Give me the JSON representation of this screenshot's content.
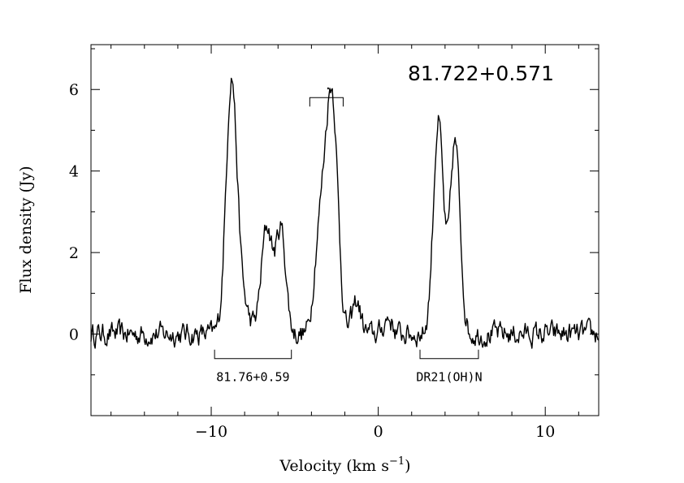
{
  "chart_data": {
    "type": "line",
    "title": "81.722+0.571",
    "xlabel": "Velocity (km s",
    "xlabel_sup": "−1",
    "xlabel_close": ")",
    "ylabel": "Flux density (Jy)",
    "xlim": [
      -17.2,
      13.2
    ],
    "ylim": [
      -2.0,
      7.1
    ],
    "xticks_major": [
      -10,
      0,
      10
    ],
    "xtick_labels": [
      "−10",
      "0",
      "10"
    ],
    "yticks_major": [
      0,
      2,
      4,
      6
    ],
    "ytick_labels": [
      "0",
      "2",
      "4",
      "6"
    ],
    "grid": false,
    "series": [
      {
        "color": "#000000",
        "peaks": [
          {
            "x": -8.8,
            "y": 5.85,
            "w": 0.32
          },
          {
            "x": -8.3,
            "y": 0.9,
            "w": 0.45
          },
          {
            "x": -6.7,
            "y": 2.25,
            "w": 0.32
          },
          {
            "x": -6.3,
            "y": 0.6,
            "w": 0.4
          },
          {
            "x": -5.8,
            "y": 2.3,
            "w": 0.28
          },
          {
            "x": -3.7,
            "y": 0.9,
            "w": 0.25
          },
          {
            "x": -3.1,
            "y": 4.0,
            "w": 0.4
          },
          {
            "x": -2.65,
            "y": 3.5,
            "w": 0.3
          },
          {
            "x": -1.3,
            "y": 0.8,
            "w": 0.25
          },
          {
            "x": 0.6,
            "y": 0.4,
            "w": 0.25
          },
          {
            "x": 3.6,
            "y": 5.2,
            "w": 0.3
          },
          {
            "x": 4.6,
            "y": 4.7,
            "w": 0.3
          }
        ]
      }
    ],
    "annotations": [
      {
        "text": "81.76+0.59",
        "x_range": [
          -9.8,
          -5.2
        ],
        "y": -0.6,
        "direction": "down"
      },
      {
        "text": "DR21(OH)N",
        "x_range": [
          2.5,
          6.0
        ],
        "y": -0.6,
        "direction": "down"
      },
      {
        "text": "",
        "x_range": [
          -4.1,
          -2.1
        ],
        "y": 5.8,
        "direction": "up"
      }
    ],
    "upper_marker": {
      "x": -3.0,
      "y": 6.0,
      "symbol": "·"
    }
  }
}
